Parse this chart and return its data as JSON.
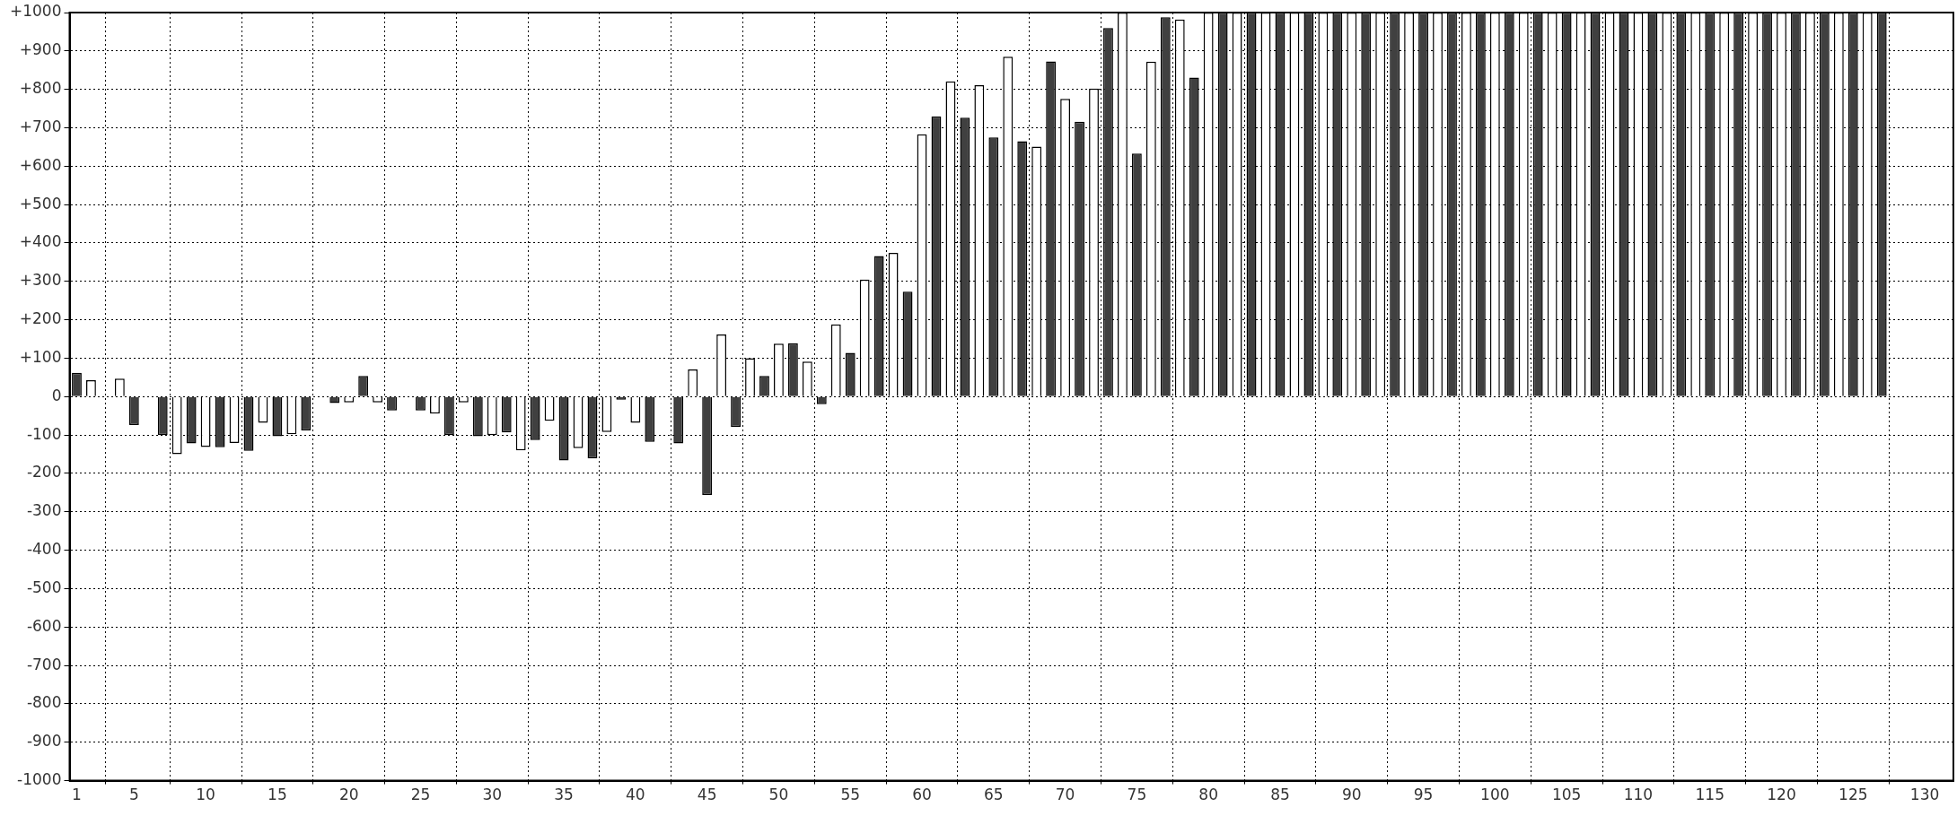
{
  "chart_data": {
    "type": "bar",
    "series": [
      {
        "color": "#404040",
        "x": [
          1,
          3,
          5,
          7,
          9,
          11,
          13,
          15,
          17,
          19,
          21,
          23,
          25,
          27,
          29,
          31,
          33,
          35,
          37,
          39,
          41,
          43,
          45,
          47,
          49,
          51,
          53,
          55,
          57,
          59,
          61,
          63,
          65,
          67,
          69,
          71,
          73,
          75,
          77,
          79,
          81,
          83,
          85,
          87,
          89,
          91,
          93,
          95,
          97,
          99,
          101,
          103,
          105,
          107,
          109,
          111,
          113,
          115,
          117,
          119,
          121,
          123,
          125,
          127
        ],
        "values": [
          62,
          null,
          -74,
          -100,
          -122,
          -132,
          -141,
          -103,
          -88,
          -17,
          54,
          -36,
          -36,
          -100,
          -103,
          -93,
          -113,
          -166,
          -161,
          -8,
          -118,
          -122,
          -256,
          -79,
          54,
          139,
          -20,
          114,
          366,
          273,
          730,
          726,
          675,
          665,
          873,
          716,
          960,
          633,
          988,
          831,
          1000,
          1000,
          1000,
          1000,
          1000,
          1000,
          1000,
          1000,
          1000,
          1000,
          1000,
          1000,
          1000,
          1000,
          1000,
          1000,
          1000,
          1000,
          1000,
          1000,
          1000,
          1000,
          1000,
          1000
        ]
      },
      {
        "color": "#ffffff",
        "x": [
          2,
          4,
          6,
          8,
          10,
          12,
          14,
          16,
          18,
          20,
          22,
          24,
          26,
          28,
          30,
          32,
          34,
          36,
          38,
          40,
          42,
          44,
          46,
          48,
          50,
          52,
          54,
          56,
          58,
          60,
          62,
          64,
          66,
          68,
          70,
          72,
          74,
          76,
          78,
          80,
          82,
          84,
          86,
          88,
          90,
          92,
          94,
          96,
          98,
          100,
          102,
          104,
          106,
          108,
          110,
          112,
          114,
          116,
          118,
          120,
          122,
          124,
          126
        ],
        "values": [
          43,
          47,
          null,
          -150,
          -131,
          -121,
          -68,
          -98,
          null,
          -15,
          -15,
          null,
          -44,
          -15,
          -100,
          -140,
          -63,
          -134,
          -92,
          -68,
          null,
          71,
          162,
          100,
          138,
          91,
          188,
          305,
          374,
          683,
          821,
          811,
          885,
          651,
          775,
          802,
          1000,
          872,
          982,
          1000,
          1000,
          1000,
          1000,
          1000,
          1000,
          1000,
          1000,
          1000,
          1000,
          1000,
          1000,
          1000,
          1000,
          1000,
          1000,
          1000,
          1000,
          1000,
          1000,
          1000,
          1000,
          1000,
          1000
        ]
      }
    ],
    "xlim": [
      0.5,
      132
    ],
    "xticks": [
      1,
      5,
      10,
      15,
      20,
      25,
      30,
      35,
      40,
      45,
      50,
      55,
      60,
      65,
      70,
      75,
      80,
      85,
      90,
      95,
      100,
      105,
      110,
      115,
      120,
      125,
      130
    ],
    "ylim": [
      -1000,
      1000
    ],
    "yticks": [
      -1000,
      -900,
      -800,
      -700,
      -600,
      -500,
      -400,
      -300,
      -200,
      -100,
      0,
      {
        "value": 100,
        "label": "+100"
      },
      {
        "value": 200,
        "label": "+200"
      },
      {
        "value": 300,
        "label": "+300"
      },
      {
        "value": 400,
        "label": "+400"
      },
      {
        "value": 500,
        "label": "+500"
      },
      {
        "value": 600,
        "label": "+600"
      },
      {
        "value": 700,
        "label": "+700"
      },
      {
        "value": 800,
        "label": "+800"
      },
      {
        "value": 900,
        "label": "+900"
      },
      {
        "value": 1000,
        "label": "+1000"
      }
    ],
    "grid": true,
    "legend": false
  }
}
